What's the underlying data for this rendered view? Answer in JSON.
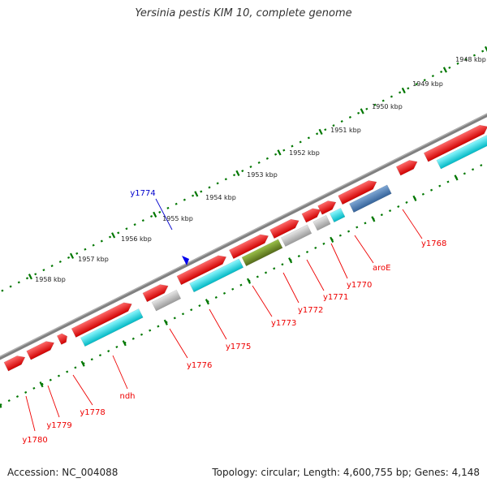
{
  "title": "Yersinia pestis KIM 10, complete genome",
  "footer": {
    "accession": "Accession: NC_004088",
    "topology": "Topology: circular; Length: 4,600,755 bp; Genes: 4,148"
  },
  "colors": {
    "forward_gene": "#ff0000",
    "reverse_gene": "#00e5ef",
    "grey_gene": "#c0c0c0",
    "olive_gene": "#6b8e23",
    "steelblue_gene": "#4a7db5",
    "pink_gene": "#ff3399",
    "backbone": "#808080",
    "tick_green": "#007700",
    "label_red": "#ee0000",
    "label_blue": "#0000cc",
    "marker_blue": "#0000ee"
  },
  "kbp_labels": [
    "1948 kbp",
    "1949 kbp",
    "1950 kbp",
    "1951 kbp",
    "1952 kbp",
    "1953 kbp",
    "1954 kbp",
    "1955 kbp",
    "1956 kbp",
    "1957 kbp",
    "1958 kbp"
  ],
  "gene_labels": {
    "blue": [
      "y1774"
    ],
    "red": [
      "y1768",
      "aroE",
      "y1770",
      "y1771",
      "y1772",
      "y1773",
      "y1775",
      "y1776",
      "ndh",
      "y1778",
      "y1779",
      "y1780"
    ]
  }
}
